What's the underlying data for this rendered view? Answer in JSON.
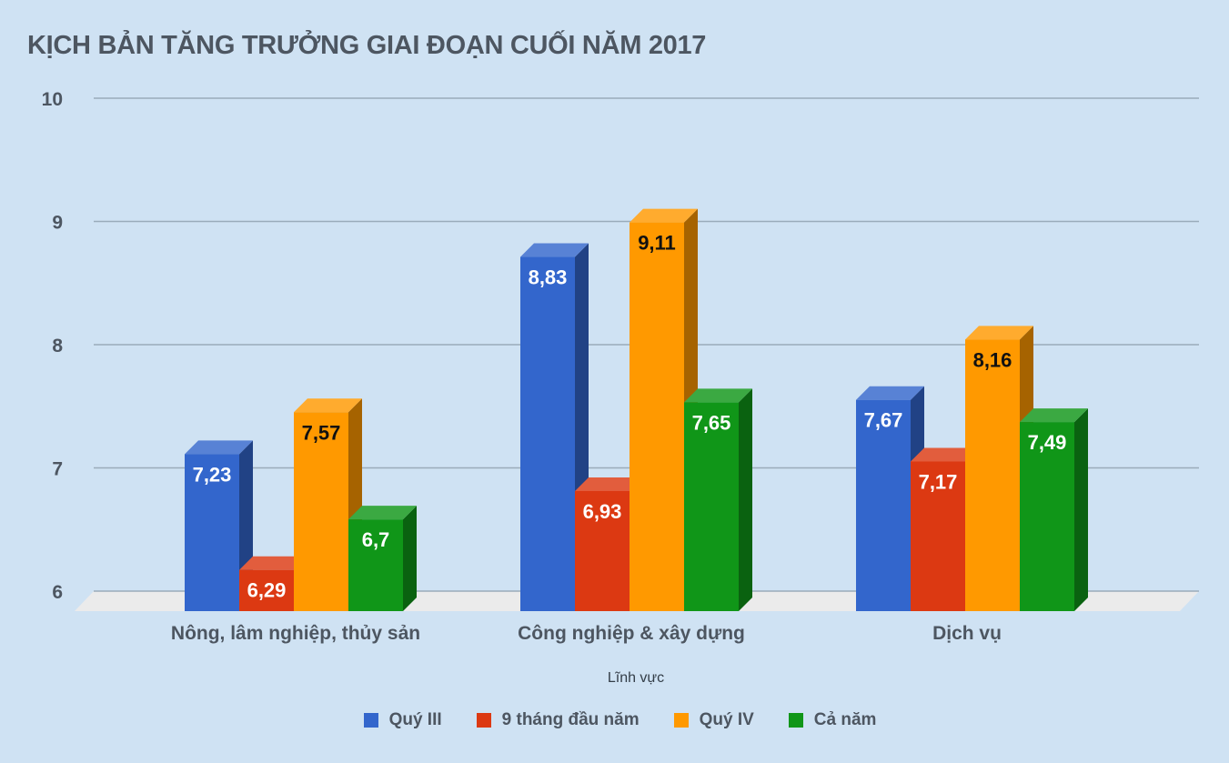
{
  "title": "KỊCH BẢN TĂNG TRƯỞNG GIAI ĐOẠN CUỐI NĂM 2017",
  "chart_data": {
    "type": "bar",
    "style": "3d-clustered-column",
    "title": "KỊCH BẢN TĂNG TRƯỞNG GIAI ĐOẠN CUỐI NĂM 2017",
    "xlabel": "Lĩnh vực",
    "ylabel": "",
    "ylim": [
      6,
      10
    ],
    "yticks": [
      6,
      7,
      8,
      9,
      10
    ],
    "ytick_labels": [
      "6",
      "7",
      "8",
      "9",
      "10"
    ],
    "grid": true,
    "legend_position": "bottom",
    "categories": [
      "Nông, lâm nghiệp, thủy sản",
      "Công nghiệp & xây dựng",
      "Dịch vụ"
    ],
    "series": [
      {
        "name": "Quý III",
        "color": "#3366cc",
        "values": [
          7.23,
          8.83,
          7.67
        ],
        "labels": [
          "7,23",
          "8,83",
          "7,67"
        ]
      },
      {
        "name": "9 tháng đầu năm",
        "color": "#dc3912",
        "values": [
          6.29,
          6.93,
          7.17
        ],
        "labels": [
          "6,29",
          "6,93",
          "7,17"
        ]
      },
      {
        "name": "Quý IV",
        "color": "#ff9900",
        "values": [
          7.57,
          9.11,
          8.16
        ],
        "labels": [
          "7,57",
          "9,11",
          "8,16"
        ]
      },
      {
        "name": "Cả năm",
        "color": "#109618",
        "values": [
          6.7,
          7.65,
          7.49
        ],
        "labels": [
          "6,7",
          "7,65",
          "7,49"
        ]
      }
    ]
  },
  "colors": {
    "background": "#cfe2f3",
    "grid": "#9aabba",
    "floor": "#ebebeb",
    "text": "#4d5661"
  }
}
